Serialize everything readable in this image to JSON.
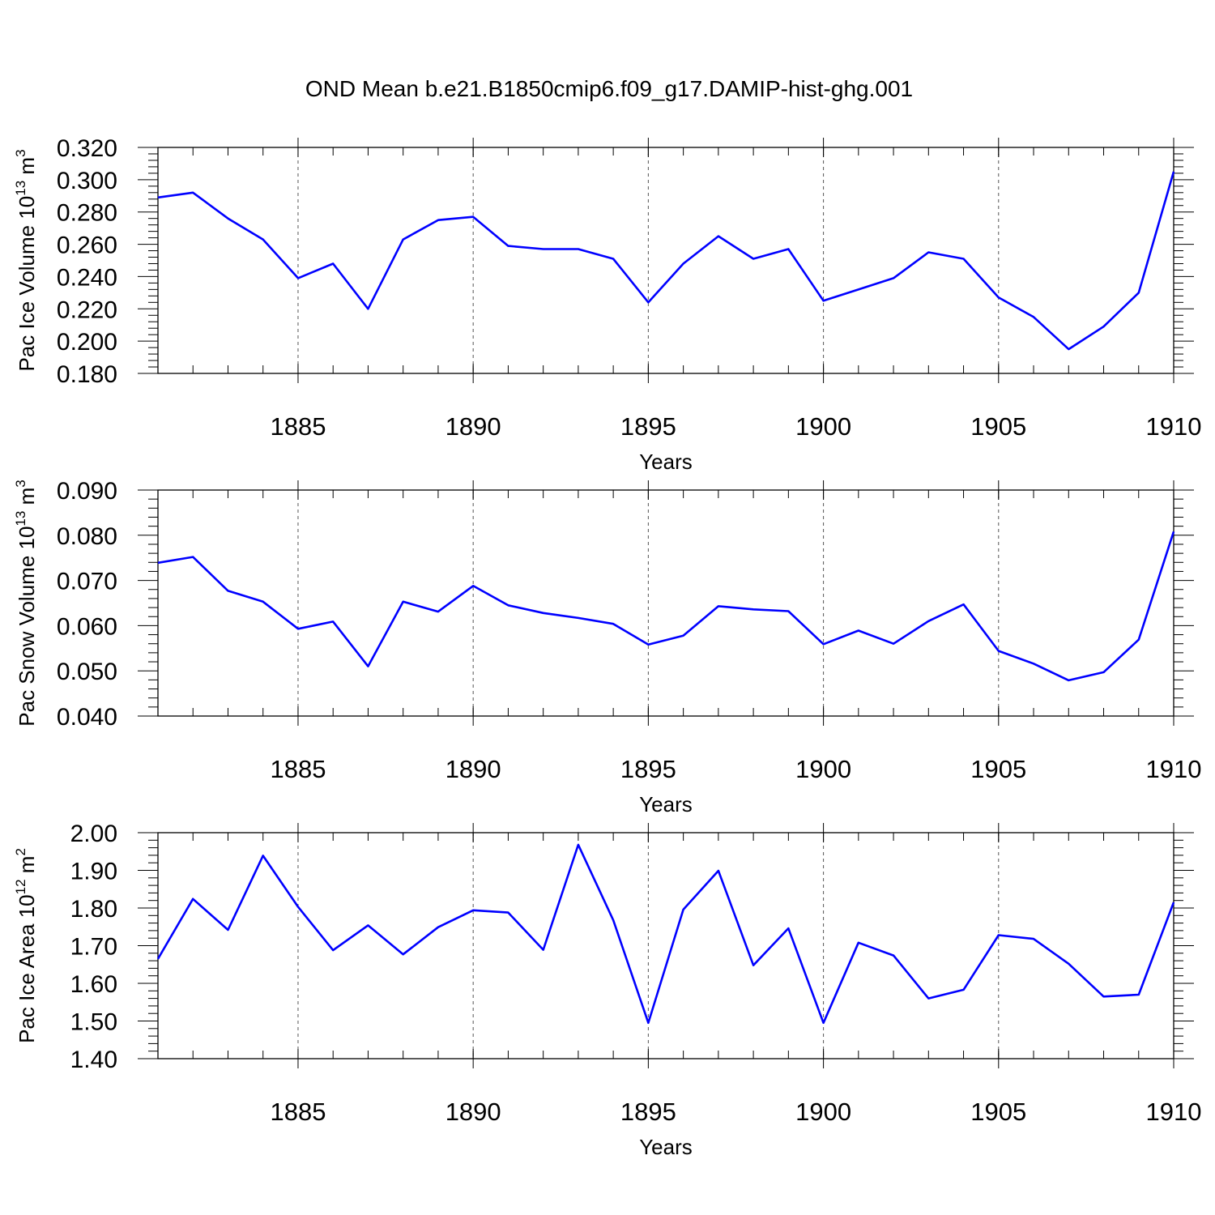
{
  "title": "OND Mean b.e21.B1850cmip6.f09_g17.DAMIP-hist-ghg.001",
  "colors": {
    "line": "#0000ff",
    "axis": "#000000",
    "grid": "#555555"
  },
  "chart_data": [
    {
      "type": "line",
      "ylabel": "Pac Ice Volume 10",
      "ylabel_exp": "13",
      "ylabel_unit": "m",
      "ylabel_unit_exp": "3",
      "xlabel": "Years",
      "xlim": [
        1881,
        1910
      ],
      "ylim": [
        0.18,
        0.32
      ],
      "yticks": [
        0.18,
        0.2,
        0.22,
        0.24,
        0.26,
        0.28,
        0.3,
        0.32
      ],
      "ytick_labels": [
        "0.180",
        "0.200",
        "0.220",
        "0.240",
        "0.260",
        "0.280",
        "0.300",
        "0.320"
      ],
      "xticks": [
        1885,
        1890,
        1895,
        1900,
        1905,
        1910
      ],
      "xtick_labels": [
        "1885",
        "1890",
        "1895",
        "1900",
        "1905",
        "1910"
      ],
      "grid": "vertical dashed at major x ticks",
      "x": [
        1881,
        1882,
        1883,
        1884,
        1885,
        1886,
        1887,
        1888,
        1889,
        1890,
        1891,
        1892,
        1893,
        1894,
        1895,
        1896,
        1897,
        1898,
        1899,
        1900,
        1901,
        1902,
        1903,
        1904,
        1905,
        1906,
        1907,
        1908,
        1909,
        1910
      ],
      "values": [
        0.289,
        0.292,
        0.276,
        0.263,
        0.239,
        0.248,
        0.22,
        0.263,
        0.275,
        0.277,
        0.259,
        0.257,
        0.257,
        0.251,
        0.224,
        0.248,
        0.265,
        0.251,
        0.257,
        0.225,
        0.232,
        0.239,
        0.255,
        0.251,
        0.227,
        0.215,
        0.195,
        0.209,
        0.23,
        0.305
      ]
    },
    {
      "type": "line",
      "ylabel": "Pac Snow Volume 10",
      "ylabel_exp": "13",
      "ylabel_unit": "m",
      "ylabel_unit_exp": "3",
      "xlabel": "Years",
      "xlim": [
        1881,
        1910
      ],
      "ylim": [
        0.04,
        0.09
      ],
      "yticks": [
        0.04,
        0.05,
        0.06,
        0.07,
        0.08,
        0.09
      ],
      "ytick_labels": [
        "0.040",
        "0.050",
        "0.060",
        "0.070",
        "0.080",
        "0.090"
      ],
      "xticks": [
        1885,
        1890,
        1895,
        1900,
        1905,
        1910
      ],
      "xtick_labels": [
        "1885",
        "1890",
        "1895",
        "1900",
        "1905",
        "1910"
      ],
      "grid": "vertical dashed at major x ticks",
      "x": [
        1881,
        1882,
        1883,
        1884,
        1885,
        1886,
        1887,
        1888,
        1889,
        1890,
        1891,
        1892,
        1893,
        1894,
        1895,
        1896,
        1897,
        1898,
        1899,
        1900,
        1901,
        1902,
        1903,
        1904,
        1905,
        1906,
        1907,
        1908,
        1909,
        1910
      ],
      "values": [
        0.0739,
        0.0752,
        0.0677,
        0.0653,
        0.0593,
        0.0609,
        0.051,
        0.0653,
        0.0631,
        0.0688,
        0.0645,
        0.0628,
        0.0617,
        0.0604,
        0.0558,
        0.0578,
        0.0643,
        0.0636,
        0.0632,
        0.0559,
        0.0589,
        0.056,
        0.061,
        0.0647,
        0.0544,
        0.0516,
        0.0479,
        0.0497,
        0.0569,
        0.0808
      ]
    },
    {
      "type": "line",
      "ylabel": "Pac Ice Area 10",
      "ylabel_exp": "12",
      "ylabel_unit": "m",
      "ylabel_unit_exp": "2",
      "xlabel": "Years",
      "xlim": [
        1881,
        1910
      ],
      "ylim": [
        1.4,
        2.0
      ],
      "yticks": [
        1.4,
        1.5,
        1.6,
        1.7,
        1.8,
        1.9,
        2.0
      ],
      "ytick_labels": [
        "1.40",
        "1.50",
        "1.60",
        "1.70",
        "1.80",
        "1.90",
        "2.00"
      ],
      "xticks": [
        1885,
        1890,
        1895,
        1900,
        1905,
        1910
      ],
      "xtick_labels": [
        "1885",
        "1890",
        "1895",
        "1900",
        "1905",
        "1910"
      ],
      "grid": "vertical dashed at major x ticks",
      "x": [
        1881,
        1882,
        1883,
        1884,
        1885,
        1886,
        1887,
        1888,
        1889,
        1890,
        1891,
        1892,
        1893,
        1894,
        1895,
        1896,
        1897,
        1898,
        1899,
        1900,
        1901,
        1902,
        1903,
        1904,
        1905,
        1906,
        1907,
        1908,
        1909,
        1910
      ],
      "values": [
        1.665,
        1.824,
        1.742,
        1.939,
        1.803,
        1.688,
        1.754,
        1.677,
        1.749,
        1.794,
        1.788,
        1.689,
        1.968,
        1.768,
        1.495,
        1.796,
        1.899,
        1.648,
        1.746,
        1.495,
        1.708,
        1.674,
        1.56,
        1.583,
        1.728,
        1.718,
        1.652,
        1.565,
        1.57,
        1.815
      ]
    }
  ]
}
